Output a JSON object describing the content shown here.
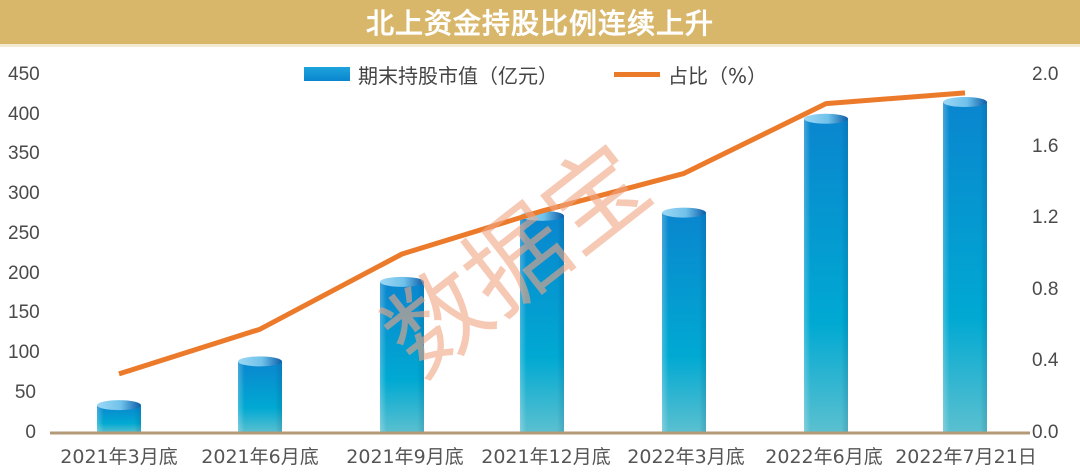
{
  "header": {
    "title": "北上资金持股比例连续上升"
  },
  "legend": {
    "bar_label": "期末持股市值（亿元）",
    "line_label": "占比（%）"
  },
  "watermark": "数据宝",
  "colors": {
    "title_bg": "#d8b66a",
    "bar_top": "#0a86cf",
    "bar_bottom": "#5bc0d0",
    "line": "#ec7a2b",
    "axis": "#b59a78",
    "watermark": "#f0a583"
  },
  "axes": {
    "left_ticks": [
      "450",
      "400",
      "350",
      "300",
      "250",
      "200",
      "150",
      "100",
      "50",
      "0"
    ],
    "right_ticks": [
      "2.0",
      "1.6",
      "1.2",
      "0.8",
      "0.4",
      "0.0"
    ],
    "x_ticks": [
      "2021年3月底",
      "2021年6月底",
      "2021年9月底",
      "2021年12月底",
      "2022年3月底",
      "2022年6月底",
      "2022年7月21日"
    ]
  },
  "chart_data": {
    "type": "bar",
    "title": "北上资金持股比例连续上升",
    "categories": [
      "2021年3月底",
      "2021年6月底",
      "2021年9月底",
      "2021年12月底",
      "2022年3月底",
      "2022年6月底",
      "2022年7月21日"
    ],
    "series": [
      {
        "name": "期末持股市值（亿元）",
        "type": "bar",
        "axis": "left",
        "values": [
          35,
          90,
          190,
          273,
          277,
          395,
          416
        ]
      },
      {
        "name": "占比（%）",
        "type": "line",
        "axis": "right",
        "values": [
          0.33,
          0.58,
          1.0,
          1.24,
          1.45,
          1.84,
          1.9
        ]
      }
    ],
    "xlabel": "",
    "ylabel": "",
    "ylim": [
      0,
      450
    ],
    "y2lim": [
      0,
      2.0
    ],
    "grid": false,
    "legend_position": "top"
  }
}
